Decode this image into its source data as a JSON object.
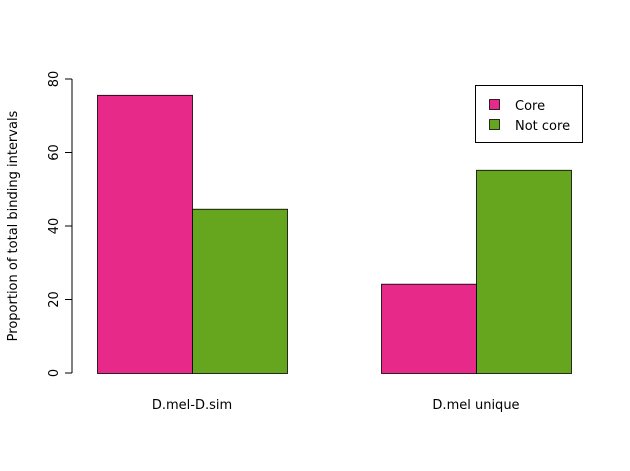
{
  "chart_data": {
    "type": "bar",
    "ylabel": "Proportion of total binding intervals",
    "xlabel": "",
    "ylim": [
      0,
      80
    ],
    "yticks": [
      0,
      20,
      40,
      60,
      80
    ],
    "categories": [
      "D.mel-D.sim",
      "D.mel unique"
    ],
    "series": [
      {
        "name": "Core",
        "color": "#E7298A",
        "values": [
          75.7,
          24.3
        ]
      },
      {
        "name": "Not core",
        "color": "#66A61E",
        "values": [
          44.7,
          55.3
        ]
      }
    ],
    "legend_position": "top-right",
    "grid": false
  }
}
